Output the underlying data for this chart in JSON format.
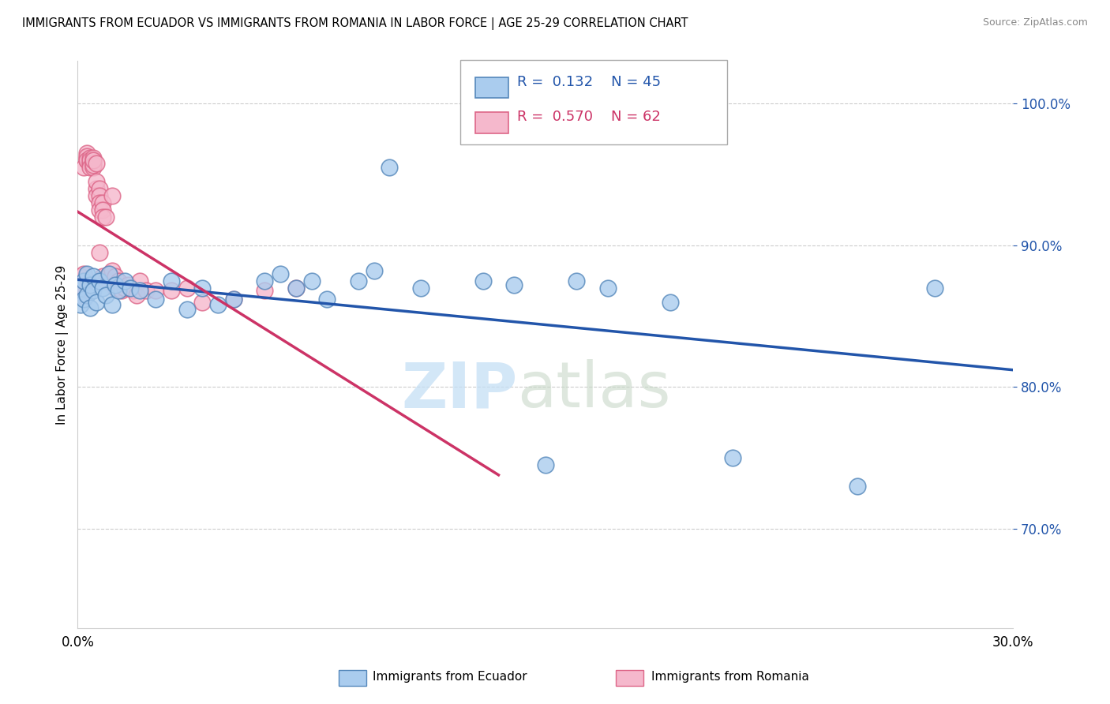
{
  "title": "IMMIGRANTS FROM ECUADOR VS IMMIGRANTS FROM ROMANIA IN LABOR FORCE | AGE 25-29 CORRELATION CHART",
  "source": "Source: ZipAtlas.com",
  "ylabel": "In Labor Force | Age 25-29",
  "xlim": [
    0.0,
    0.3
  ],
  "ylim": [
    0.63,
    1.03
  ],
  "xticks": [
    0.0,
    0.05,
    0.1,
    0.15,
    0.2,
    0.25,
    0.3
  ],
  "xticklabels": [
    "0.0%",
    "",
    "",
    "",
    "",
    "",
    "30.0%"
  ],
  "yticks": [
    0.7,
    0.8,
    0.9,
    1.0
  ],
  "yticklabels": [
    "70.0%",
    "80.0%",
    "90.0%",
    "100.0%"
  ],
  "legend_ecuador_label": "Immigrants from Ecuador",
  "legend_romania_label": "Immigrants from Romania",
  "ecuador_R": "0.132",
  "ecuador_N": "45",
  "romania_R": "0.570",
  "romania_N": "62",
  "ecuador_color": "#aaccee",
  "ecuador_edge_color": "#5588bb",
  "romania_color": "#f5b8cc",
  "romania_edge_color": "#dd6688",
  "ecuador_trendline_color": "#2255aa",
  "romania_trendline_color": "#cc3366",
  "ecuador_x": [
    0.001,
    0.001,
    0.002,
    0.002,
    0.003,
    0.003,
    0.004,
    0.004,
    0.005,
    0.005,
    0.006,
    0.007,
    0.008,
    0.009,
    0.01,
    0.011,
    0.012,
    0.013,
    0.015,
    0.017,
    0.02,
    0.025,
    0.03,
    0.035,
    0.04,
    0.045,
    0.05,
    0.06,
    0.065,
    0.07,
    0.075,
    0.08,
    0.09,
    0.095,
    0.1,
    0.11,
    0.13,
    0.14,
    0.15,
    0.16,
    0.17,
    0.19,
    0.21,
    0.25,
    0.275
  ],
  "ecuador_y": [
    0.87,
    0.858,
    0.875,
    0.862,
    0.88,
    0.865,
    0.872,
    0.856,
    0.878,
    0.868,
    0.86,
    0.875,
    0.87,
    0.865,
    0.88,
    0.858,
    0.872,
    0.868,
    0.875,
    0.87,
    0.868,
    0.862,
    0.875,
    0.855,
    0.87,
    0.858,
    0.862,
    0.875,
    0.88,
    0.87,
    0.875,
    0.862,
    0.875,
    0.882,
    0.955,
    0.87,
    0.875,
    0.872,
    0.745,
    0.875,
    0.87,
    0.86,
    0.75,
    0.73,
    0.87
  ],
  "romania_x": [
    0.001,
    0.001,
    0.001,
    0.001,
    0.001,
    0.002,
    0.002,
    0.002,
    0.002,
    0.003,
    0.003,
    0.003,
    0.003,
    0.003,
    0.004,
    0.004,
    0.004,
    0.004,
    0.005,
    0.005,
    0.005,
    0.005,
    0.005,
    0.005,
    0.006,
    0.006,
    0.006,
    0.006,
    0.007,
    0.007,
    0.007,
    0.007,
    0.007,
    0.008,
    0.008,
    0.008,
    0.008,
    0.009,
    0.009,
    0.01,
    0.01,
    0.01,
    0.011,
    0.011,
    0.012,
    0.012,
    0.013,
    0.014,
    0.015,
    0.016,
    0.017,
    0.018,
    0.019,
    0.02,
    0.022,
    0.025,
    0.03,
    0.035,
    0.04,
    0.05,
    0.06,
    0.07
  ],
  "romania_y": [
    0.865,
    0.87,
    0.875,
    0.878,
    0.868,
    0.87,
    0.875,
    0.88,
    0.955,
    0.96,
    0.962,
    0.965,
    0.963,
    0.96,
    0.958,
    0.962,
    0.96,
    0.955,
    0.96,
    0.958,
    0.962,
    0.955,
    0.957,
    0.96,
    0.958,
    0.94,
    0.945,
    0.935,
    0.94,
    0.935,
    0.93,
    0.925,
    0.895,
    0.93,
    0.925,
    0.92,
    0.878,
    0.92,
    0.875,
    0.875,
    0.878,
    0.88,
    0.882,
    0.935,
    0.878,
    0.87,
    0.875,
    0.868,
    0.87,
    0.872,
    0.87,
    0.868,
    0.865,
    0.875,
    0.868,
    0.868,
    0.868,
    0.87,
    0.86,
    0.862,
    0.868,
    0.87
  ],
  "watermark_zip_color": "#c5dff5",
  "watermark_atlas_color": "#c8d8c8"
}
